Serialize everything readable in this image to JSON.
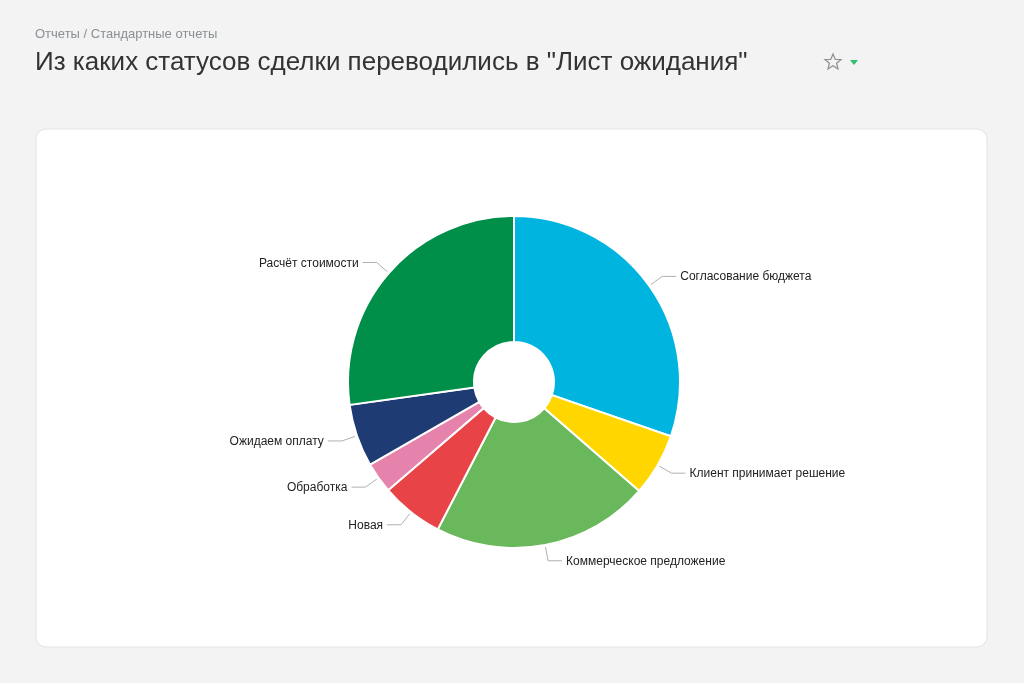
{
  "chart_data": {
    "type": "donut",
    "subtitle": "Отчеты / Стандартные отчеты",
    "title": "Из каких статусов сделки переводились в \"Лист ожидания\"",
    "categories": [
      "Согласование бюджета",
      "Клиент принимает решение",
      "Коммерческое предложение",
      "Новая",
      "Обработка",
      "Ожидаем оплату",
      "Расчёт стоимости"
    ],
    "values": [
      30.3,
      6.1,
      21.2,
      6.1,
      3.0,
      6.1,
      27.2
    ],
    "colors": [
      "#00b4e0",
      "#ffd600",
      "#6ab85c",
      "#e84447",
      "#e683ad",
      "#1f3b73",
      "#008f48"
    ]
  }
}
